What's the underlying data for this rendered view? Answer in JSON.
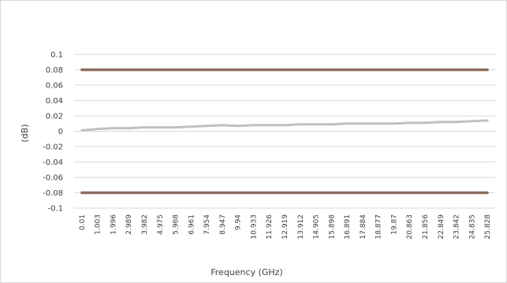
{
  "chart_data": {
    "type": "line",
    "title": "",
    "xlabel": "Frequency (GHz)",
    "ylabel": "(dB)",
    "ylim": [
      -0.1,
      0.1
    ],
    "y_ticks": [
      0.1,
      0.08,
      0.06,
      0.04,
      0.02,
      0,
      -0.02,
      -0.04,
      -0.06,
      -0.08,
      -0.1
    ],
    "y_tick_labels": [
      "0.1",
      "0.08",
      "0.06",
      "0.04",
      "0.02",
      "0",
      "-0.02",
      "-0.04",
      "-0.06",
      "-0.08",
      "-0.1"
    ],
    "grid": true,
    "legend": "none",
    "categories": [
      "0.01",
      "1.003",
      "1.996",
      "2.989",
      "3.982",
      "4.975",
      "5.968",
      "6.961",
      "7.954",
      "8.947",
      "9.94",
      "10.933",
      "11.926",
      "12.919",
      "13.912",
      "14.905",
      "15.898",
      "16.891",
      "17.884",
      "18.877",
      "19.87",
      "20.863",
      "21.856",
      "22.849",
      "23.842",
      "24.835",
      "25.828"
    ],
    "series": [
      {
        "color": "#c0c0c0",
        "values": [
          0.001,
          0.003,
          0.004,
          0.004,
          0.005,
          0.005,
          0.005,
          0.006,
          0.007,
          0.008,
          0.007,
          0.008,
          0.008,
          0.008,
          0.009,
          0.009,
          0.009,
          0.01,
          0.01,
          0.01,
          0.01,
          0.011,
          0.011,
          0.012,
          0.012,
          0.013,
          0.014
        ]
      },
      {
        "color": "#8b6e5f",
        "values": [
          0.08,
          0.08,
          0.08,
          0.08,
          0.08,
          0.08,
          0.08,
          0.08,
          0.08,
          0.08,
          0.08,
          0.08,
          0.08,
          0.08,
          0.08,
          0.08,
          0.08,
          0.08,
          0.08,
          0.08,
          0.08,
          0.08,
          0.08,
          0.08,
          0.08,
          0.08,
          0.08
        ]
      },
      {
        "color": "#8b6e5f",
        "values": [
          -0.08,
          -0.08,
          -0.08,
          -0.08,
          -0.08,
          -0.08,
          -0.08,
          -0.08,
          -0.08,
          -0.08,
          -0.08,
          -0.08,
          -0.08,
          -0.08,
          -0.08,
          -0.08,
          -0.08,
          -0.08,
          -0.08,
          -0.08,
          -0.08,
          -0.08,
          -0.08,
          -0.08,
          -0.08,
          -0.08,
          -0.08
        ]
      }
    ],
    "colors": {
      "gridline": "#d9d9d9",
      "text": "#404040"
    }
  }
}
